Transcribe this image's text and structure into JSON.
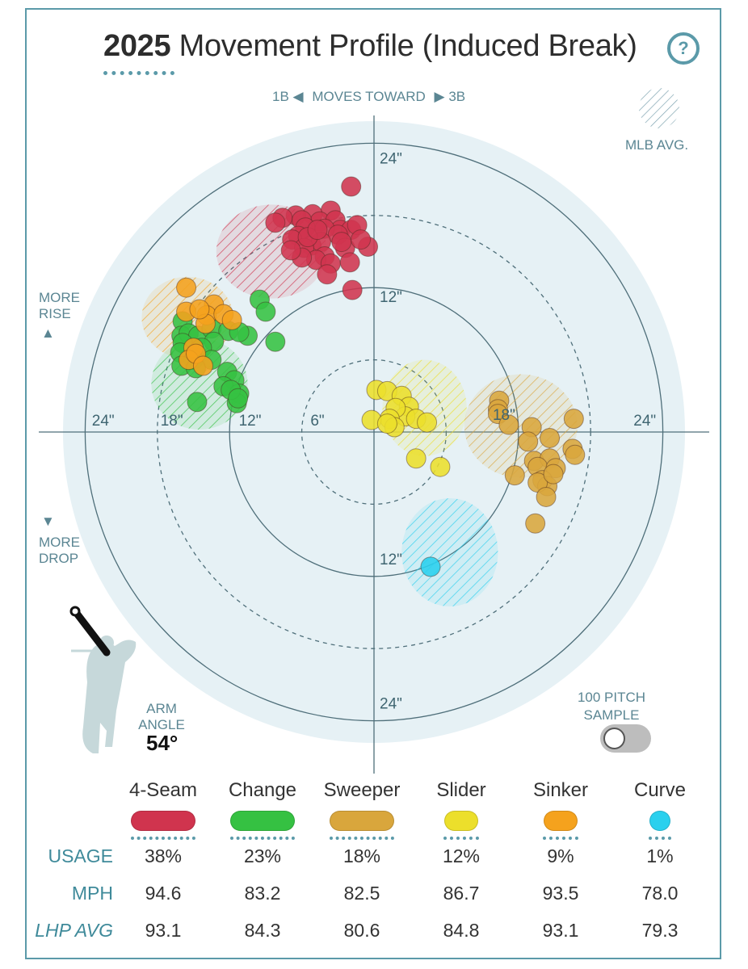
{
  "header": {
    "title_year": "2025",
    "title_rest": "Movement Profile (Induced Break)",
    "help_label": "?"
  },
  "direction": {
    "left": "1B",
    "middle": "MOVES TOWARD",
    "right": "3B"
  },
  "mlb_avg_label": "MLB AVG.",
  "more_rise": [
    "MORE",
    "RISE"
  ],
  "more_drop": [
    "MORE",
    "DROP"
  ],
  "arm_angle": {
    "label_1": "ARM",
    "label_2": "ANGLE",
    "value": "54°"
  },
  "sample_toggle": {
    "label_1": "100 PITCH",
    "label_2": "SAMPLE",
    "on": false
  },
  "colors": {
    "accent": "#5b9aa9",
    "4-Seam": "#d0344e",
    "Change": "#35c142",
    "Sweeper": "#d9a63c",
    "Slider": "#ecdf2b",
    "Sinker": "#f5a21d",
    "Curve": "#2ad0ee"
  },
  "chart_data": {
    "type": "scatter",
    "units": "inches",
    "x_meaning": "horizontal break (negative toward 1B, positive toward 3B)",
    "y_meaning": "induced vertical break (positive = more rise)",
    "xlim": [
      -24,
      24
    ],
    "ylim": [
      -24,
      24
    ],
    "ring_labels": [
      "6\"",
      "12\"",
      "18\"",
      "24\""
    ],
    "axis_tick_labels": {
      "left": [
        "24\"",
        "18\"",
        "12\"",
        "6\""
      ],
      "right": [
        "18\"",
        "24\""
      ],
      "top": [
        "24\"",
        "12\""
      ],
      "bottom": [
        "12\"",
        "24\""
      ]
    },
    "mlb_avg": [
      {
        "pitch": "4-Seam",
        "x": -8.5,
        "y": 15,
        "rx": 4.6,
        "ry": 3.9
      },
      {
        "pitch": "Sinker",
        "x": -15.5,
        "y": 9.5,
        "rx": 3.8,
        "ry": 3.4
      },
      {
        "pitch": "Change",
        "x": -14.5,
        "y": 4,
        "rx": 4.0,
        "ry": 3.8
      },
      {
        "pitch": "Slider",
        "x": 4.2,
        "y": 2,
        "rx": 3.5,
        "ry": 4.0
      },
      {
        "pitch": "Sweeper",
        "x": 12.2,
        "y": 0.5,
        "rx": 4.7,
        "ry": 4.3
      },
      {
        "pitch": "Curve",
        "x": 6.3,
        "y": -10,
        "rx": 4.0,
        "ry": 4.5
      }
    ],
    "series": [
      {
        "name": "4-Seam",
        "points": [
          [
            -1.9,
            20.4
          ],
          [
            -3.6,
            18.4
          ],
          [
            -5.1,
            18.1
          ],
          [
            -6.5,
            18.0
          ],
          [
            -4.5,
            17.5
          ],
          [
            -7.6,
            17.8
          ],
          [
            -8.2,
            17.4
          ],
          [
            -6.0,
            17.6
          ],
          [
            -5.7,
            17.0
          ],
          [
            -3.2,
            17.6
          ],
          [
            -2.8,
            16.8
          ],
          [
            -4.1,
            16.9
          ],
          [
            -1.9,
            16.8
          ],
          [
            -1.4,
            17.2
          ],
          [
            -6.3,
            16.3
          ],
          [
            -6.8,
            16.0
          ],
          [
            -5.2,
            15.5
          ],
          [
            -3.0,
            16.4
          ],
          [
            -2.4,
            15.3
          ],
          [
            -4.4,
            15.8
          ],
          [
            -5.8,
            15.3
          ],
          [
            -2.7,
            15.8
          ],
          [
            -0.5,
            15.4
          ],
          [
            -4.1,
            14.6
          ],
          [
            -4.8,
            14.3
          ],
          [
            -6.0,
            14.5
          ],
          [
            -3.6,
            14.0
          ],
          [
            -2.0,
            14.1
          ],
          [
            -1.1,
            16.0
          ],
          [
            -6.9,
            15.1
          ],
          [
            -3.9,
            13.1
          ],
          [
            -1.8,
            11.8
          ],
          [
            -5.5,
            16.2
          ],
          [
            -4.7,
            16.8
          ]
        ]
      },
      {
        "name": "Change",
        "points": [
          [
            -9.5,
            11.0
          ],
          [
            -9.0,
            10.0
          ],
          [
            -10.5,
            8.0
          ],
          [
            -8.2,
            7.5
          ],
          [
            -15.9,
            9.2
          ],
          [
            -16.0,
            8.0
          ],
          [
            -15.4,
            8.2
          ],
          [
            -14.6,
            8.0
          ],
          [
            -13.5,
            8.6
          ],
          [
            -12.1,
            8.4
          ],
          [
            -11.2,
            8.3
          ],
          [
            -13.3,
            7.5
          ],
          [
            -15.9,
            7.4
          ],
          [
            -14.3,
            7.0
          ],
          [
            -16.1,
            6.6
          ],
          [
            -15.0,
            6.0
          ],
          [
            -13.5,
            6.0
          ],
          [
            -16.0,
            5.5
          ],
          [
            -14.8,
            5.3
          ],
          [
            -12.2,
            5.0
          ],
          [
            -11.6,
            4.3
          ],
          [
            -12.5,
            3.8
          ],
          [
            -11.2,
            3.2
          ],
          [
            -11.4,
            2.4
          ],
          [
            -14.7,
            2.5
          ],
          [
            -11.9,
            3.5
          ],
          [
            -11.3,
            2.8
          ]
        ]
      },
      {
        "name": "Sweeper",
        "points": [
          [
            10.4,
            2.6
          ],
          [
            10.3,
            1.9
          ],
          [
            10.3,
            1.5
          ],
          [
            11.2,
            0.6
          ],
          [
            13.1,
            0.4
          ],
          [
            16.6,
            1.1
          ],
          [
            12.8,
            -0.8
          ],
          [
            14.6,
            -0.5
          ],
          [
            16.5,
            -1.4
          ],
          [
            13.3,
            -2.4
          ],
          [
            14.6,
            -2.2
          ],
          [
            16.7,
            -1.9
          ],
          [
            13.6,
            -2.9
          ],
          [
            15.1,
            -3.0
          ],
          [
            11.7,
            -3.6
          ],
          [
            14.0,
            -4.0
          ],
          [
            14.4,
            -4.5
          ],
          [
            13.6,
            -4.2
          ],
          [
            14.3,
            -5.4
          ],
          [
            13.4,
            -7.6
          ],
          [
            14.9,
            -3.5
          ]
        ]
      },
      {
        "name": "Slider",
        "points": [
          [
            0.2,
            3.5
          ],
          [
            1.1,
            3.4
          ],
          [
            2.3,
            3.0
          ],
          [
            2.9,
            2.1
          ],
          [
            2.6,
            1.3
          ],
          [
            1.8,
            2.0
          ],
          [
            1.3,
            1.1
          ],
          [
            3.5,
            1.1
          ],
          [
            -0.2,
            1.0
          ],
          [
            1.7,
            0.4
          ],
          [
            4.4,
            0.8
          ],
          [
            1.1,
            0.7
          ],
          [
            3.5,
            -2.2
          ],
          [
            5.5,
            -2.9
          ]
        ]
      },
      {
        "name": "Sinker",
        "points": [
          [
            -15.6,
            12.0
          ],
          [
            -13.3,
            10.6
          ],
          [
            -15.6,
            10.0
          ],
          [
            -13.9,
            9.7
          ],
          [
            -14.0,
            9.0
          ],
          [
            -12.5,
            9.8
          ],
          [
            -15.0,
            7.0
          ],
          [
            -15.4,
            6.0
          ],
          [
            -14.8,
            6.5
          ],
          [
            -14.2,
            5.5
          ],
          [
            -11.8,
            9.3
          ],
          [
            -14.5,
            10.2
          ]
        ]
      },
      {
        "name": "Curve",
        "points": [
          [
            4.7,
            -11.2
          ]
        ]
      }
    ],
    "table": {
      "row_labels": [
        "USAGE",
        "MPH",
        "LHP AVG"
      ],
      "columns": [
        {
          "pitch": "4-Seam",
          "usage": "38%",
          "mph": "94.6",
          "lhp_avg": "93.1"
        },
        {
          "pitch": "Change",
          "usage": "23%",
          "mph": "83.2",
          "lhp_avg": "84.3"
        },
        {
          "pitch": "Sweeper",
          "usage": "18%",
          "mph": "82.5",
          "lhp_avg": "80.6"
        },
        {
          "pitch": "Slider",
          "usage": "12%",
          "mph": "86.7",
          "lhp_avg": "84.8"
        },
        {
          "pitch": "Sinker",
          "usage": "9%",
          "mph": "93.5",
          "lhp_avg": "93.1"
        },
        {
          "pitch": "Curve",
          "usage": "1%",
          "mph": "78.0",
          "lhp_avg": "79.3"
        }
      ]
    }
  }
}
